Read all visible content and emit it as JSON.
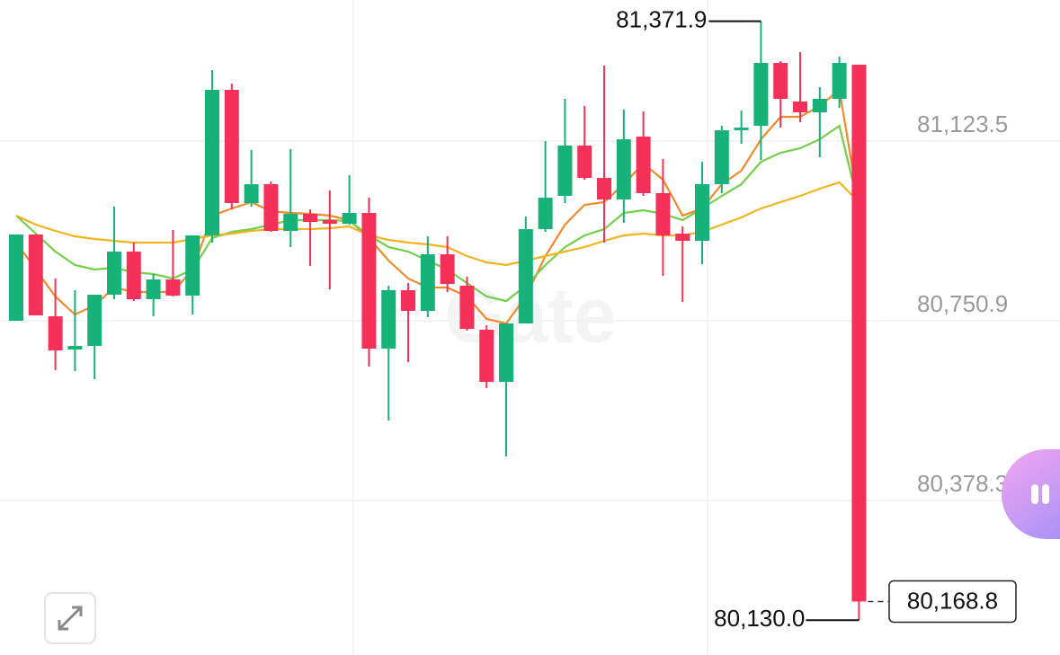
{
  "chart_data": {
    "type": "candlestick",
    "up_color": "#17b27a",
    "down_color": "#f5315a",
    "ylim": [
      80057.9,
      81416.0
    ],
    "yticks": [
      {
        "value": 81123.5,
        "label": "81,123.5"
      },
      {
        "value": 80750.9,
        "label": "80,750.9"
      },
      {
        "value": 80378.3,
        "label": "80,378.3"
      }
    ],
    "grid": true,
    "watermark": "Gate",
    "open": [
      80750.9,
      80929.8,
      80760.2,
      80691.3,
      80698.7,
      80804.9,
      80894.4,
      80795.6,
      80836.6,
      80803.1,
      80927.9,
      81229.7,
      80995.0,
      81034.1,
      80937.2,
      80972.6,
      80959.6,
      80952.1,
      80974.5,
      80693.2,
      80814.3,
      80771.4,
      80888.8,
      80823.6,
      80732.3,
      80624.2,
      80745.3,
      80940.9,
      81009.9,
      81114.2,
      81047.1,
      81002.4,
      81132.8,
      81015.5,
      80931.6,
      80916.7,
      81034.1,
      81145.9,
      81155.2,
      81285.6,
      81205.5,
      81183.1,
      81211.1,
      81281.9
    ],
    "high": [
      80929.8,
      80929.8,
      80838.5,
      80814.3,
      80804.9,
      80987.5,
      80913.0,
      80847.8,
      80939.1,
      80927.9,
      81270.7,
      81242.7,
      81104.9,
      81039.7,
      81106.7,
      80981.9,
      81021.0,
      81052.7,
      81006.1,
      80823.6,
      80829.2,
      80926.0,
      80926.0,
      80842.2,
      80741.6,
      80745.3,
      80967.0,
      81123.5,
      81211.1,
      81196.2,
      81280.0,
      81188.7,
      81185.0,
      81086.2,
      80946.5,
      81080.7,
      81155.2,
      81186.9,
      81371.9,
      81289.3,
      81307.9,
      81235.3,
      81298.6,
      81281.9
    ],
    "low": [
      80750.9,
      80762.1,
      80648.4,
      80646.6,
      80629.8,
      80795.6,
      80791.9,
      80760.2,
      80801.2,
      80763.9,
      80913.0,
      80981.9,
      80987.5,
      80935.3,
      80903.7,
      80864.6,
      80816.1,
      80950.2,
      80655.9,
      80544.1,
      80665.2,
      80758.4,
      80810.5,
      80730.4,
      80611.2,
      80469.6,
      80745.3,
      80935.3,
      80995.0,
      81043.4,
      80913.0,
      80954.0,
      81009.9,
      80844.1,
      80790.0,
      80868.3,
      81015.5,
      81117.9,
      81084.4,
      81151.5,
      81162.6,
      81090.0,
      81192.4,
      80130.0
    ],
    "close": [
      80929.8,
      80762.1,
      80689.4,
      80698.7,
      80804.9,
      80894.4,
      80795.6,
      80836.6,
      80803.1,
      80927.9,
      81229.7,
      80995.0,
      81034.1,
      80937.2,
      80972.6,
      80955.8,
      80952.1,
      80974.5,
      80693.2,
      80814.3,
      80771.4,
      80888.8,
      80827.3,
      80734.1,
      80624.2,
      80745.3,
      80940.9,
      81006.1,
      81114.2,
      81047.1,
      81002.4,
      81127.2,
      81015.5,
      80927.9,
      80916.7,
      81034.1,
      81145.9,
      81151.5,
      81285.6,
      81211.1,
      81183.1,
      81211.1,
      81285.6,
      80168.8
    ],
    "overlays": [
      {
        "color": "#f2892a",
        "values": [
          80913.0,
          80857.1,
          80801.2,
          80763.9,
          80782.6,
          80819.8,
          80810.5,
          80810.5,
          80810.5,
          80857.1,
          80968.9,
          80983.8,
          80996.8,
          80978.2,
          80974.5,
          80972.6,
          80968.9,
          80959.6,
          80922.3,
          80875.7,
          80838.5,
          80819.8,
          80819.8,
          80801.2,
          80754.6,
          80745.3,
          80801.2,
          80885.0,
          80950.2,
          80991.2,
          80996.8,
          81034.1,
          81076.9,
          81043.4,
          80968.9,
          80983.8,
          81034.1,
          81062.0,
          81127.2,
          81173.8,
          81173.8,
          81196.2,
          81229.7,
          80987.5
        ]
      },
      {
        "color": "#72d04a",
        "values": [
          80968.9,
          80931.6,
          80894.4,
          80866.4,
          80857.1,
          80860.8,
          80851.5,
          80847.8,
          80838.5,
          80857.1,
          80922.3,
          80935.3,
          80940.9,
          80950.2,
          80959.6,
          80959.6,
          80959.6,
          80957.7,
          80927.9,
          80903.7,
          80894.4,
          80875.7,
          80857.1,
          80829.2,
          80801.2,
          80791.9,
          80823.6,
          80866.4,
          80903.7,
          80927.9,
          80940.9,
          80974.5,
          80980.1,
          80972.6,
          80959.6,
          80983.8,
          81009.9,
          81034.1,
          81080.7,
          81099.3,
          81108.6,
          81127.2,
          81155.2,
          80987.5
        ]
      },
      {
        "color": "#f0b51e",
        "values": [
          80968.9,
          80950.2,
          80937.2,
          80926.0,
          80920.4,
          80916.7,
          80913.0,
          80913.0,
          80913.0,
          80920.4,
          80927.9,
          80931.6,
          80937.2,
          80940.9,
          80940.9,
          80940.9,
          80942.8,
          80946.5,
          80927.9,
          80918.6,
          80913.0,
          80909.3,
          80903.7,
          80885.0,
          80872.0,
          80866.4,
          80875.7,
          80885.0,
          80894.4,
          80903.7,
          80916.7,
          80927.9,
          80931.6,
          80927.9,
          80927.9,
          80935.3,
          80950.2,
          80965.2,
          80983.8,
          80996.8,
          81009.9,
          81024.8,
          81037.8,
          80996.8
        ]
      }
    ],
    "max_label": {
      "value": 81371.9,
      "label": "81,371.9"
    },
    "min_label": {
      "value": 80130.0,
      "label": "80,130.0"
    },
    "last_price": {
      "value": 80168.8,
      "label": "80,168.8"
    }
  }
}
